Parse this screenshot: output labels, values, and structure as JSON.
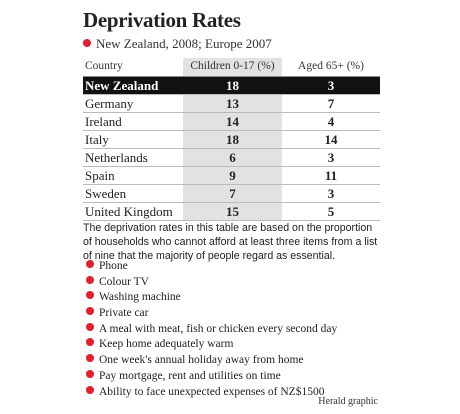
{
  "header": {
    "title": "Deprivation Rates",
    "subtitle": "New Zealand, 2008; Europe 2007"
  },
  "table": {
    "columns": [
      "Country",
      "Children 0-17 (%)",
      "Aged 65+ (%)"
    ],
    "rows": [
      [
        "New Zealand",
        18,
        3
      ],
      [
        "Germany",
        13,
        7
      ],
      [
        "Ireland",
        14,
        4
      ],
      [
        "Italy",
        18,
        14
      ],
      [
        "Netherlands",
        6,
        3
      ],
      [
        "Spain",
        9,
        11
      ],
      [
        "Sweden",
        7,
        3
      ],
      [
        "United Kingdom",
        15,
        5
      ]
    ]
  },
  "note": "The deprivation rates in this table are based on the proportion of households who cannot afford at least three items from a list of nine that the majority of people regard as essential.",
  "items": [
    "Phone",
    "Colour TV",
    "Washing machine",
    "Private car",
    "A meal with meat, fish or chicken every second day",
    "Keep home adequately warm",
    "One week's annual holiday away from home",
    "Pay mortgage, rent and utilities on time",
    "Ability to face unexpected expenses of NZ$1500"
  ],
  "credit": "Herald graphic"
}
